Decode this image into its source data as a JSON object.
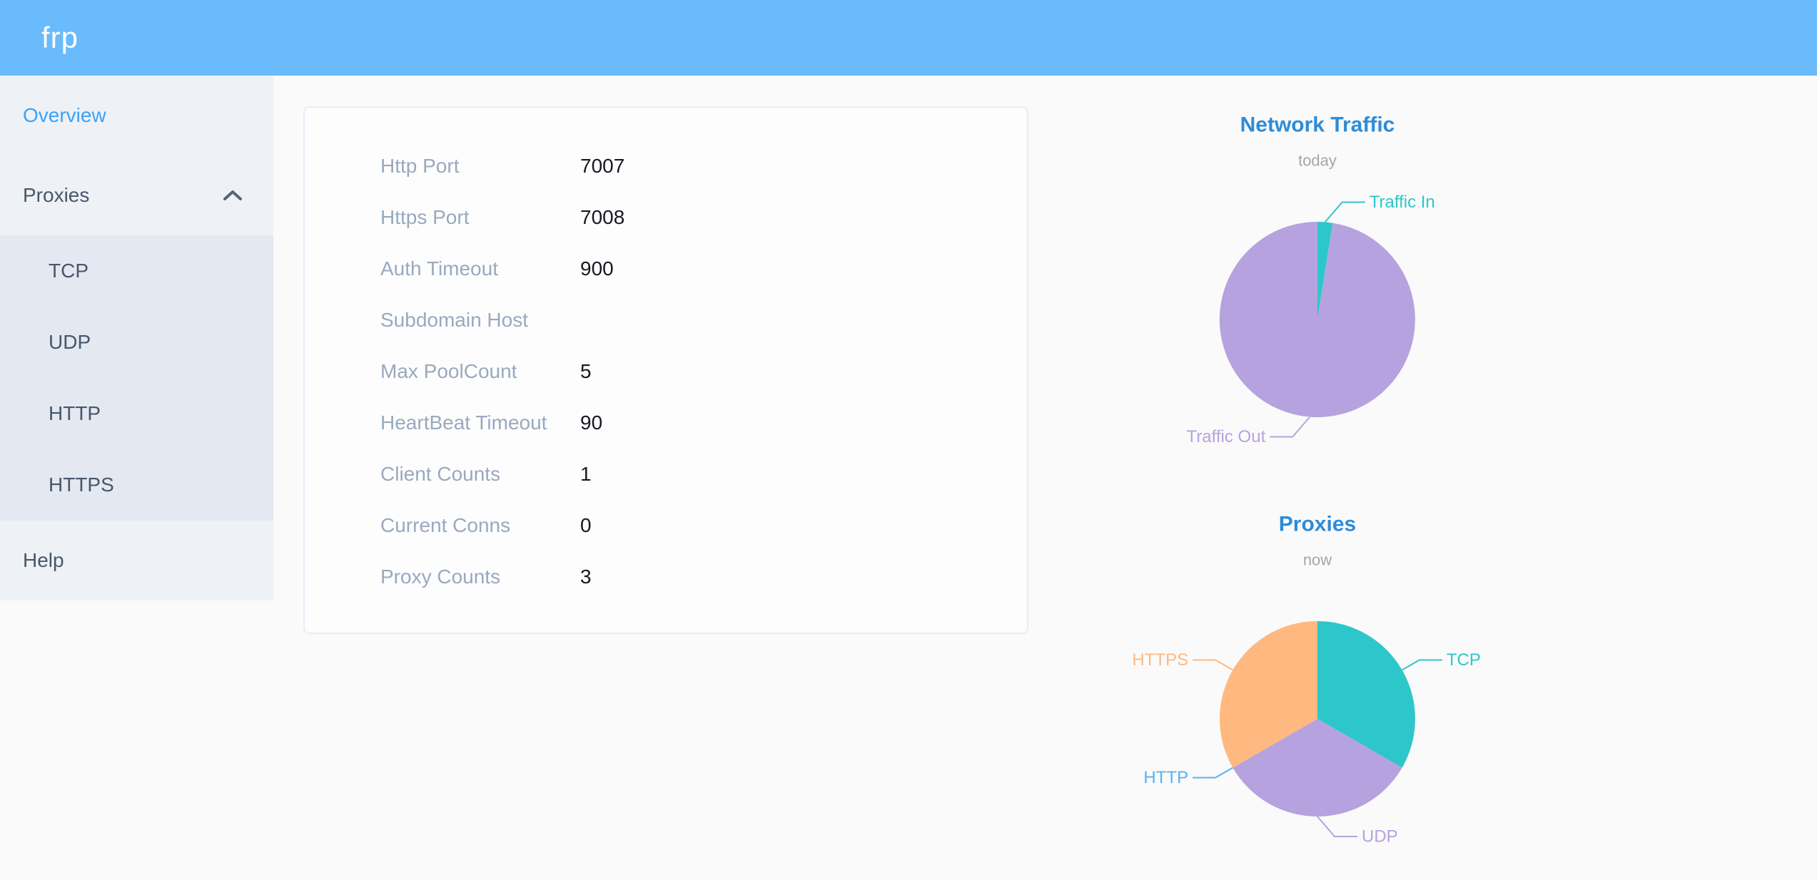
{
  "header": {
    "logo": "frp"
  },
  "sidebar": {
    "overview": "Overview",
    "proxies": "Proxies",
    "proxies_icon": "chevron-up-icon",
    "proxies_children": [
      "TCP",
      "UDP",
      "HTTP",
      "HTTPS"
    ],
    "help": "Help"
  },
  "card": {
    "rows": [
      {
        "label": "Http Port",
        "value": "7007"
      },
      {
        "label": "Https Port",
        "value": "7008"
      },
      {
        "label": "Auth Timeout",
        "value": "900"
      },
      {
        "label": "Subdomain Host",
        "value": ""
      },
      {
        "label": "Max PoolCount",
        "value": "5"
      },
      {
        "label": "HeartBeat Timeout",
        "value": "90"
      },
      {
        "label": "Client Counts",
        "value": "1"
      },
      {
        "label": "Current Conns",
        "value": "0"
      },
      {
        "label": "Proxy Counts",
        "value": "3"
      }
    ]
  },
  "colors": {
    "header_bg": "#69bbfb",
    "sidebar_bg": "#eef1f6",
    "submenu_bg": "#e4e8f1",
    "sidebar_text": "#48576a",
    "active_text": "#3aa2f9",
    "card_label": "#99a9bf",
    "chart_title": "#2d8cd8",
    "chart_subtitle": "#a5a5a5",
    "pie_teal": "#2ec7c9",
    "pie_purple": "#b6a2de",
    "pie_blue": "#5ab1ef",
    "pie_orange": "#ffb980"
  },
  "chart_data": [
    {
      "type": "pie",
      "title": "Network Traffic",
      "subtitle": "today",
      "title_color": "#2d8cd8",
      "subtitle_color": "#a5a5a5",
      "legend": "none",
      "labels": "outside-with-leader-lines",
      "start_angle_deg_from_top": 0,
      "direction": "clockwise",
      "units": "percent (estimated from pie angles)",
      "series": [
        {
          "name": "Traffic In",
          "value": 2.5,
          "color": "#2ec7c9"
        },
        {
          "name": "Traffic Out",
          "value": 97.5,
          "color": "#b6a2de"
        }
      ]
    },
    {
      "type": "pie",
      "title": "Proxies",
      "subtitle": "now",
      "title_color": "#2d8cd8",
      "subtitle_color": "#a5a5a5",
      "legend": "none",
      "labels": "outside-with-leader-lines",
      "start_angle_deg_from_top": 0,
      "direction": "clockwise",
      "units": "proxy count",
      "series": [
        {
          "name": "TCP",
          "value": 1,
          "color": "#2ec7c9"
        },
        {
          "name": "UDP",
          "value": 1,
          "color": "#b6a2de"
        },
        {
          "name": "HTTP",
          "value": 0,
          "color": "#5ab1ef"
        },
        {
          "name": "HTTPS",
          "value": 1,
          "color": "#ffb980"
        }
      ]
    }
  ]
}
